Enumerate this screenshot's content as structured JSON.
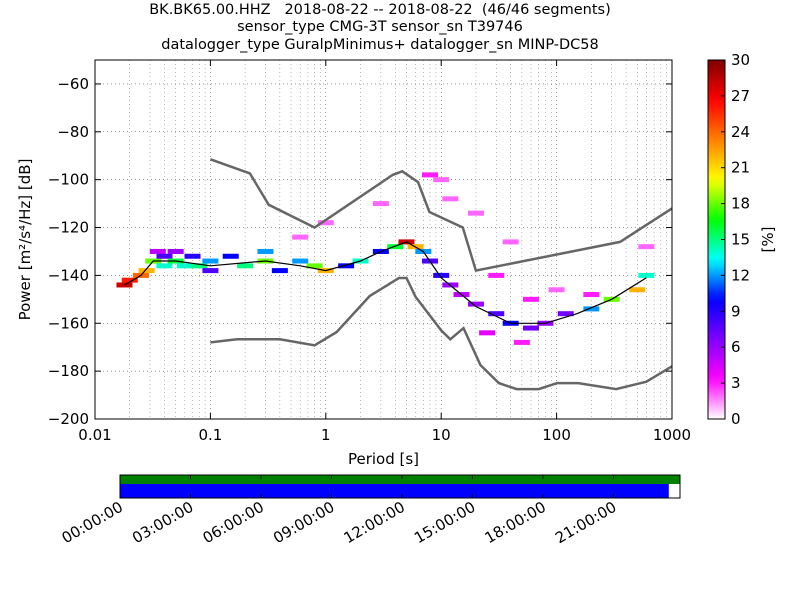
{
  "title": {
    "line1": "BK.BK65.00.HHZ   2018-08-22 -- 2018-08-22  (46/46 segments)",
    "line2": "sensor_type CMG-3T sensor_sn T39746",
    "line3": "datalogger_type GuralpMinimus+ datalogger_sn MINP-DC58"
  },
  "chart_data": {
    "type": "heatmap",
    "xlabel": "Period [s]",
    "ylabel": "Power [m²/s⁴/Hz] [dB]",
    "xscale": "log",
    "xlim": [
      0.01,
      1000
    ],
    "ylim": [
      -200,
      -50
    ],
    "x_ticks": [
      0.01,
      0.1,
      1,
      10,
      100,
      1000
    ],
    "x_tick_labels": [
      "0.01",
      "0.1",
      "1",
      "10",
      "100",
      "1000"
    ],
    "y_ticks": [
      -200,
      -180,
      -160,
      -140,
      -120,
      -100,
      -80,
      -60
    ],
    "y_tick_labels": [
      "−200",
      "−180",
      "−160",
      "−140",
      "−120",
      "−100",
      "−80",
      "−60"
    ],
    "grid": true,
    "colorbar": {
      "label": "[%]",
      "min": 0,
      "max": 30,
      "ticks": [
        0,
        3,
        6,
        9,
        12,
        15,
        18,
        21,
        24,
        27,
        30
      ],
      "tick_labels": [
        "0",
        "3",
        "6",
        "9",
        "12",
        "15",
        "18",
        "21",
        "24",
        "27",
        "30"
      ],
      "colormap": [
        "#ffffff",
        "#ff00ff",
        "#8000ff",
        "#0000ff",
        "#00ffff",
        "#00ff00",
        "#ffff00",
        "#ff8000",
        "#ff0000",
        "#800000"
      ]
    },
    "noise_models": [
      {
        "name": "NHNM",
        "color": "#666666",
        "points": [
          [
            0.1,
            -91.5
          ],
          [
            0.22,
            -97.4
          ],
          [
            0.32,
            -110.5
          ],
          [
            0.8,
            -120
          ],
          [
            3.8,
            -98
          ],
          [
            4.6,
            -96.5
          ],
          [
            6.3,
            -101
          ],
          [
            7.9,
            -113.5
          ],
          [
            15.4,
            -120
          ],
          [
            20,
            -138
          ],
          [
            354.8,
            -126
          ],
          [
            1000,
            -112
          ]
        ]
      },
      {
        "name": "NLNM",
        "color": "#666666",
        "points": [
          [
            0.1,
            -168
          ],
          [
            0.17,
            -166.7
          ],
          [
            0.4,
            -166.7
          ],
          [
            0.8,
            -169.2
          ],
          [
            1.24,
            -163.7
          ],
          [
            2.4,
            -148.6
          ],
          [
            4.3,
            -141.1
          ],
          [
            5,
            -141.1
          ],
          [
            6,
            -149
          ],
          [
            10,
            -163
          ],
          [
            12,
            -166.7
          ],
          [
            15.6,
            -162
          ],
          [
            21.9,
            -177.5
          ],
          [
            31.6,
            -185
          ],
          [
            45,
            -187.5
          ],
          [
            70,
            -187.5
          ],
          [
            101,
            -185
          ],
          [
            154,
            -185
          ],
          [
            328,
            -187.5
          ],
          [
            600,
            -184.4
          ],
          [
            1000,
            -178
          ]
        ]
      }
    ],
    "mean_line": {
      "color": "#000000",
      "points": [
        [
          0.018,
          -144
        ],
        [
          0.025,
          -140
        ],
        [
          0.032,
          -134
        ],
        [
          0.05,
          -134
        ],
        [
          0.1,
          -136
        ],
        [
          0.3,
          -134
        ],
        [
          0.6,
          -136
        ],
        [
          1,
          -138
        ],
        [
          2,
          -134
        ],
        [
          3,
          -130
        ],
        [
          5,
          -126
        ],
        [
          7,
          -130
        ],
        [
          10,
          -141
        ],
        [
          20,
          -153
        ],
        [
          40,
          -160
        ],
        [
          80,
          -160
        ],
        [
          150,
          -156
        ],
        [
          300,
          -150
        ],
        [
          600,
          -141
        ]
      ]
    },
    "density_cells": [
      {
        "x": 0.018,
        "y": -144,
        "pct": 28
      },
      {
        "x": 0.02,
        "y": -142,
        "pct": 26
      },
      {
        "x": 0.025,
        "y": -140,
        "pct": 24
      },
      {
        "x": 0.028,
        "y": -138,
        "pct": 22
      },
      {
        "x": 0.032,
        "y": -134,
        "pct": 18
      },
      {
        "x": 0.035,
        "y": -130,
        "pct": 5
      },
      {
        "x": 0.04,
        "y": -132,
        "pct": 8
      },
      {
        "x": 0.04,
        "y": -136,
        "pct": 14
      },
      {
        "x": 0.05,
        "y": -134,
        "pct": 16
      },
      {
        "x": 0.05,
        "y": -130,
        "pct": 6
      },
      {
        "x": 0.06,
        "y": -136,
        "pct": 14
      },
      {
        "x": 0.07,
        "y": -132,
        "pct": 9
      },
      {
        "x": 0.08,
        "y": -136,
        "pct": 15
      },
      {
        "x": 0.1,
        "y": -134,
        "pct": 12
      },
      {
        "x": 0.1,
        "y": -138,
        "pct": 8
      },
      {
        "x": 0.15,
        "y": -132,
        "pct": 10
      },
      {
        "x": 0.2,
        "y": -136,
        "pct": 15
      },
      {
        "x": 0.3,
        "y": -130,
        "pct": 12
      },
      {
        "x": 0.3,
        "y": -134,
        "pct": 18
      },
      {
        "x": 0.4,
        "y": -138,
        "pct": 10
      },
      {
        "x": 0.6,
        "y": -134,
        "pct": 12
      },
      {
        "x": 0.8,
        "y": -136,
        "pct": 18
      },
      {
        "x": 1,
        "y": -138,
        "pct": 22
      },
      {
        "x": 1.5,
        "y": -136,
        "pct": 10
      },
      {
        "x": 2,
        "y": -134,
        "pct": 14
      },
      {
        "x": 3,
        "y": -130,
        "pct": 10
      },
      {
        "x": 4,
        "y": -128,
        "pct": 16
      },
      {
        "x": 5,
        "y": -126,
        "pct": 28
      },
      {
        "x": 6,
        "y": -128,
        "pct": 22
      },
      {
        "x": 7,
        "y": -130,
        "pct": 12
      },
      {
        "x": 8,
        "y": -134,
        "pct": 8
      },
      {
        "x": 10,
        "y": -140,
        "pct": 9
      },
      {
        "x": 12,
        "y": -144,
        "pct": 6
      },
      {
        "x": 15,
        "y": -148,
        "pct": 5
      },
      {
        "x": 20,
        "y": -152,
        "pct": 6
      },
      {
        "x": 30,
        "y": -156,
        "pct": 8
      },
      {
        "x": 40,
        "y": -160,
        "pct": 10
      },
      {
        "x": 60,
        "y": -162,
        "pct": 7
      },
      {
        "x": 80,
        "y": -160,
        "pct": 6
      },
      {
        "x": 120,
        "y": -156,
        "pct": 7
      },
      {
        "x": 200,
        "y": -154,
        "pct": 12
      },
      {
        "x": 300,
        "y": -150,
        "pct": 18
      },
      {
        "x": 500,
        "y": -146,
        "pct": 22
      },
      {
        "x": 600,
        "y": -140,
        "pct": 14
      },
      {
        "x": 8,
        "y": -98,
        "pct": 3
      },
      {
        "x": 10,
        "y": -100,
        "pct": 2
      },
      {
        "x": 12,
        "y": -108,
        "pct": 2
      },
      {
        "x": 20,
        "y": -114,
        "pct": 2
      },
      {
        "x": 40,
        "y": -126,
        "pct": 2
      },
      {
        "x": 3,
        "y": -110,
        "pct": 2
      },
      {
        "x": 1,
        "y": -118,
        "pct": 2
      },
      {
        "x": 0.6,
        "y": -124,
        "pct": 2
      },
      {
        "x": 30,
        "y": -140,
        "pct": 3
      },
      {
        "x": 60,
        "y": -150,
        "pct": 3
      },
      {
        "x": 100,
        "y": -146,
        "pct": 2
      },
      {
        "x": 200,
        "y": -148,
        "pct": 3
      },
      {
        "x": 600,
        "y": -128,
        "pct": 2
      },
      {
        "x": 25,
        "y": -164,
        "pct": 4
      },
      {
        "x": 50,
        "y": -168,
        "pct": 3
      }
    ],
    "timeline": {
      "time_labels": [
        "00:00:00",
        "03:00:00",
        "06:00:00",
        "09:00:00",
        "12:00:00",
        "15:00:00",
        "18:00:00",
        "21:00:00"
      ],
      "data_coverage_fraction": 0.98,
      "processed_coverage_fraction": 1.0,
      "data_color": "#0000ff",
      "processed_color": "#008000"
    }
  }
}
